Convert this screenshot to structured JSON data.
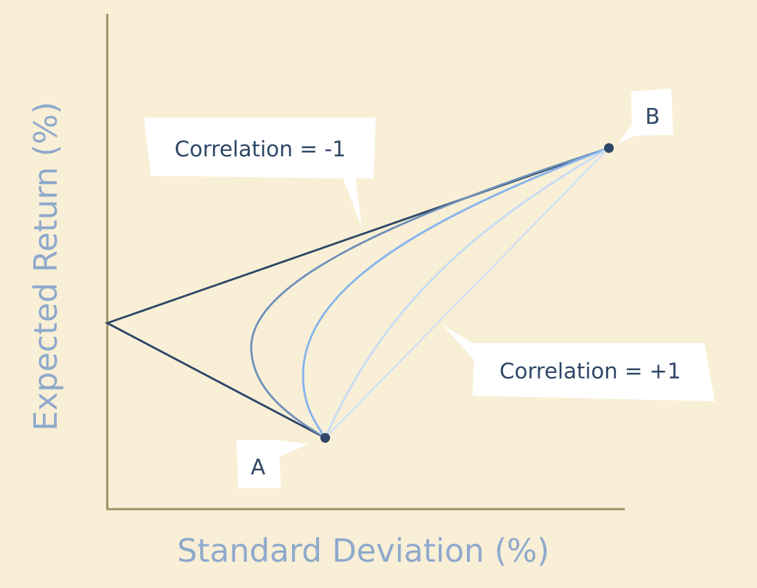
{
  "x_axis_label": "Standard Deviation (%)",
  "y_axis_label": "Expected Return (%)",
  "points": [
    {
      "id": "A",
      "label": "A"
    },
    {
      "id": "B",
      "label": "B"
    }
  ],
  "callouts": {
    "negative": "Correlation = -1",
    "positive": "Correlation = +1"
  },
  "curves": [
    {
      "correlation": "-1",
      "color": "#2e4668"
    },
    {
      "correlation": "-0.5",
      "color": "#6f91ba"
    },
    {
      "correlation": "0",
      "color": "#86b3ec"
    },
    {
      "correlation": "0.5",
      "color": "#c6dcf4"
    },
    {
      "correlation": "+1",
      "color": "#cfe0f4"
    }
  ],
  "colors": {
    "background": "#f8efd6",
    "axis": "#a08b62",
    "axis_title": "#8fa9cc",
    "callout_text": "#2f4766",
    "point": "#2f4766"
  }
}
